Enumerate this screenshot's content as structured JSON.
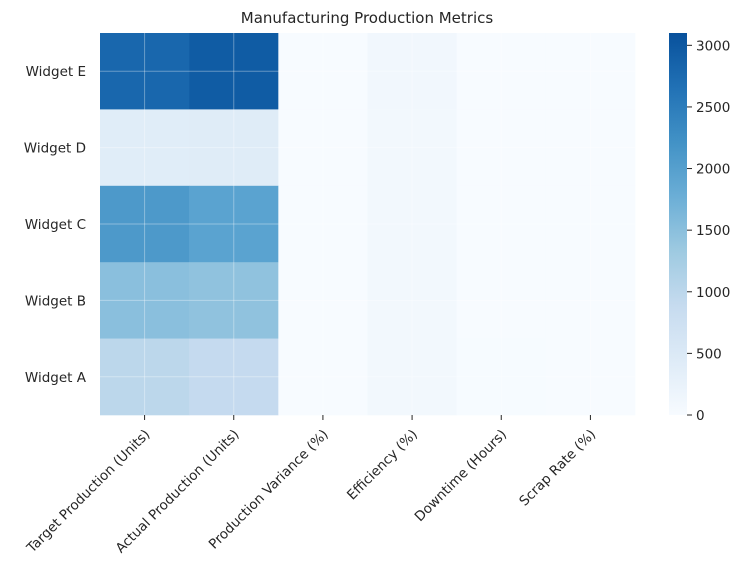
{
  "chart_data": {
    "type": "heatmap",
    "title": "Manufacturing Production Metrics",
    "xlabel": "",
    "ylabel": "",
    "columns": [
      "Target Production (Units)",
      "Actual Production (Units)",
      "Production Variance (%)",
      "Efficiency (%)",
      "Downtime (Hours)",
      "Scrap Rate (%)"
    ],
    "rows": [
      "Widget E",
      "Widget D",
      "Widget C",
      "Widget B",
      "Widget A"
    ],
    "values": [
      [
        2800,
        2950,
        3,
        98,
        5,
        2
      ],
      [
        400,
        420,
        5,
        95,
        6,
        2
      ],
      [
        2100,
        1950,
        -7,
        93,
        8,
        3
      ],
      [
        1500,
        1450,
        -3,
        96,
        4,
        2
      ],
      [
        1000,
        900,
        -10,
        90,
        10,
        4
      ]
    ],
    "colorbar": {
      "min": 0,
      "max": 3100,
      "ticks": [
        0,
        500,
        1000,
        1500,
        2000,
        2500,
        3000
      ],
      "colors": [
        "#f7fbff",
        "#deebf7",
        "#c6dbef",
        "#9ecae1",
        "#6baed6",
        "#4292c6",
        "#2171b5",
        "#08519c"
      ]
    },
    "grid": true
  }
}
